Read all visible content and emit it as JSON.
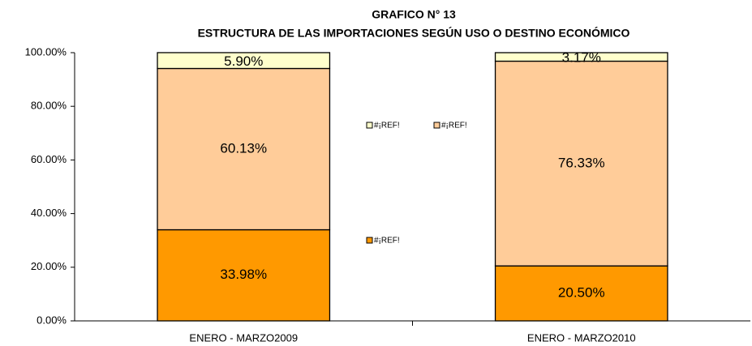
{
  "chart_data": {
    "type": "stacked-bar",
    "title": "GRAFICO N° 13",
    "subtitle": "ESTRUCTURA DE LAS IMPORTACIONES SEGÚN USO O DESTINO ECONÓMICO",
    "categories": [
      "ENERO - MARZO2009",
      "ENERO - MARZO2010"
    ],
    "series": [
      {
        "name": "#¡REF!",
        "color": "#FF9900",
        "values": [
          33.98,
          20.5
        ],
        "value_labels": [
          "33.98%",
          "20.50%"
        ]
      },
      {
        "name": "#¡REF!",
        "color": "#FFCC99",
        "values": [
          60.13,
          76.33
        ],
        "value_labels": [
          "60.13%",
          "76.33%"
        ]
      },
      {
        "name": "#¡REF!",
        "color": "#FFFFCC",
        "values": [
          5.9,
          3.17
        ],
        "value_labels": [
          "5.90%",
          "3.17%"
        ]
      }
    ],
    "ylim": [
      0,
      100
    ],
    "yticks": [
      {
        "value": 0,
        "label": "0.00%"
      },
      {
        "value": 20,
        "label": "20.00%"
      },
      {
        "value": 40,
        "label": "40.00%"
      },
      {
        "value": 60,
        "label": "60.00%"
      },
      {
        "value": 80,
        "label": "80.00%"
      },
      {
        "value": 100,
        "label": "100.00%"
      }
    ]
  }
}
